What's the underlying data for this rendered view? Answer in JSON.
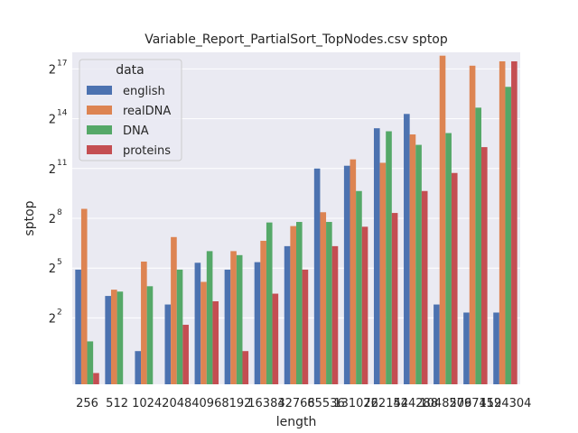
{
  "chart_data": {
    "type": "bar",
    "title": "Variable_Report_PartialSort_TopNodes.csv sptop",
    "xlabel": "length",
    "ylabel": "sptop",
    "yscale": "log2",
    "ylim": [
      0.25,
      262144
    ],
    "yticks": [
      {
        "value": 4,
        "base": "2",
        "exp": "2"
      },
      {
        "value": 32,
        "base": "2",
        "exp": "5"
      },
      {
        "value": 256,
        "base": "2",
        "exp": "8"
      },
      {
        "value": 2048,
        "base": "2",
        "exp": "11"
      },
      {
        "value": 16384,
        "base": "2",
        "exp": "14"
      },
      {
        "value": 131072,
        "base": "2",
        "exp": "17"
      }
    ],
    "grid": true,
    "legend": {
      "title": "data",
      "placement": "top-left"
    },
    "categories": [
      "256",
      "512",
      "1024",
      "2048",
      "4096",
      "8192",
      "16384",
      "32768",
      "65536",
      "131072",
      "262144",
      "524288",
      "1048576",
      "2097152",
      "4194304"
    ],
    "series": [
      {
        "name": "english",
        "color": "#4c72b0",
        "values": [
          30,
          10,
          1,
          7,
          40,
          30,
          41,
          80,
          2048,
          2300,
          11000,
          20000,
          7,
          5,
          5
        ]
      },
      {
        "name": "realDNA",
        "color": "#dd8452",
        "values": [
          380,
          13,
          42,
          117,
          18,
          65,
          100,
          185,
          330,
          3000,
          2600,
          8500,
          228000,
          150000,
          180000
        ]
      },
      {
        "name": "DNA",
        "color": "#55a868",
        "values": [
          1.5,
          12,
          15,
          30,
          65,
          55,
          215,
          220,
          220,
          800,
          9700,
          5500,
          9000,
          26000,
          62000
        ]
      },
      {
        "name": "proteins",
        "color": "#c44e52",
        "values": [
          0.4,
          0,
          0,
          3,
          8,
          1,
          11,
          30,
          80,
          180,
          320,
          800,
          1700,
          5000,
          180000
        ]
      }
    ]
  }
}
